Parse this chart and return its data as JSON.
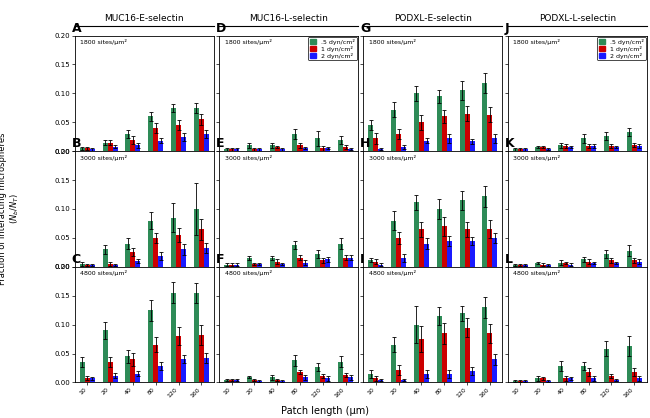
{
  "columns": [
    "MUC16-E-selectin",
    "MUC16-L-selectin",
    "PODXL-E-selectin",
    "PODXL-L-selectin"
  ],
  "col_letters": [
    [
      "A",
      "B",
      "C"
    ],
    [
      "D",
      "E",
      "F"
    ],
    [
      "G",
      "H",
      "I"
    ],
    [
      "J",
      "K",
      "L"
    ]
  ],
  "row_labels": [
    "1800 sites/μm²",
    "3000 sites/μm²",
    "4800 sites/μm²"
  ],
  "x_ticks": [
    10,
    20,
    40,
    80,
    120,
    160
  ],
  "xlabel": "Patch length (μm)",
  "ylim": [
    0,
    0.2
  ],
  "yticks": [
    0.0,
    0.05,
    0.1,
    0.15,
    0.2
  ],
  "colors": [
    "#2e8b57",
    "#cc0000",
    "#1a1aff"
  ],
  "legend_labels": [
    ".5 dyn/cm²",
    "1 dyn/cm²",
    "2 dyn/cm²"
  ],
  "data": {
    "MUC16-E-selectin": {
      "1800": {
        "green": [
          0.005,
          0.015,
          0.03,
          0.06,
          0.075,
          0.075
        ],
        "red": [
          0.005,
          0.015,
          0.02,
          0.04,
          0.045,
          0.055
        ],
        "blue": [
          0.003,
          0.008,
          0.01,
          0.018,
          0.025,
          0.03
        ],
        "green_err": [
          0.003,
          0.005,
          0.007,
          0.007,
          0.007,
          0.009
        ],
        "red_err": [
          0.003,
          0.005,
          0.007,
          0.009,
          0.009,
          0.009
        ],
        "blue_err": [
          0.002,
          0.003,
          0.004,
          0.004,
          0.007,
          0.007
        ]
      },
      "3000": {
        "green": [
          0.005,
          0.03,
          0.04,
          0.08,
          0.085,
          0.1
        ],
        "red": [
          0.003,
          0.005,
          0.025,
          0.05,
          0.055,
          0.065
        ],
        "blue": [
          0.003,
          0.003,
          0.01,
          0.018,
          0.03,
          0.033
        ],
        "green_err": [
          0.004,
          0.007,
          0.009,
          0.015,
          0.025,
          0.045
        ],
        "red_err": [
          0.002,
          0.004,
          0.007,
          0.009,
          0.012,
          0.018
        ],
        "blue_err": [
          0.002,
          0.002,
          0.004,
          0.007,
          0.009,
          0.009
        ]
      },
      "4800": {
        "green": [
          0.035,
          0.09,
          0.045,
          0.125,
          0.155,
          0.155
        ],
        "red": [
          0.008,
          0.035,
          0.04,
          0.065,
          0.08,
          0.082
        ],
        "blue": [
          0.007,
          0.012,
          0.015,
          0.028,
          0.04,
          0.042
        ],
        "green_err": [
          0.009,
          0.014,
          0.011,
          0.018,
          0.018,
          0.017
        ],
        "red_err": [
          0.004,
          0.009,
          0.011,
          0.013,
          0.016,
          0.018
        ],
        "blue_err": [
          0.002,
          0.004,
          0.004,
          0.007,
          0.007,
          0.009
        ]
      }
    },
    "MUC16-L-selectin": {
      "1800": {
        "green": [
          0.003,
          0.01,
          0.01,
          0.03,
          0.022,
          0.02
        ],
        "red": [
          0.003,
          0.003,
          0.007,
          0.01,
          0.005,
          0.007
        ],
        "blue": [
          0.003,
          0.003,
          0.003,
          0.005,
          0.005,
          0.004
        ],
        "green_err": [
          0.002,
          0.004,
          0.004,
          0.009,
          0.013,
          0.007
        ],
        "red_err": [
          0.002,
          0.002,
          0.002,
          0.004,
          0.004,
          0.004
        ],
        "blue_err": [
          0.002,
          0.002,
          0.002,
          0.002,
          0.002,
          0.002
        ]
      },
      "3000": {
        "green": [
          0.004,
          0.015,
          0.015,
          0.038,
          0.022,
          0.04
        ],
        "red": [
          0.004,
          0.005,
          0.009,
          0.016,
          0.011,
          0.016
        ],
        "blue": [
          0.004,
          0.005,
          0.005,
          0.007,
          0.013,
          0.016
        ],
        "green_err": [
          0.002,
          0.004,
          0.004,
          0.007,
          0.007,
          0.009
        ],
        "red_err": [
          0.002,
          0.002,
          0.004,
          0.004,
          0.004,
          0.004
        ],
        "blue_err": [
          0.002,
          0.002,
          0.002,
          0.004,
          0.004,
          0.004
        ]
      },
      "4800": {
        "green": [
          0.004,
          0.009,
          0.009,
          0.038,
          0.026,
          0.036
        ],
        "red": [
          0.004,
          0.004,
          0.004,
          0.018,
          0.011,
          0.013
        ],
        "blue": [
          0.004,
          0.002,
          0.002,
          0.009,
          0.007,
          0.009
        ],
        "green_err": [
          0.002,
          0.002,
          0.004,
          0.009,
          0.007,
          0.009
        ],
        "red_err": [
          0.002,
          0.002,
          0.002,
          0.004,
          0.004,
          0.004
        ],
        "blue_err": [
          0.002,
          0.002,
          0.002,
          0.004,
          0.004,
          0.004
        ]
      }
    },
    "PODXL-E-selectin": {
      "1800": {
        "green": [
          0.045,
          0.072,
          0.1,
          0.095,
          0.105,
          0.118
        ],
        "red": [
          0.022,
          0.03,
          0.05,
          0.06,
          0.065,
          0.063
        ],
        "blue": [
          0.004,
          0.007,
          0.018,
          0.022,
          0.017,
          0.022
        ],
        "green_err": [
          0.009,
          0.013,
          0.013,
          0.011,
          0.016,
          0.018
        ],
        "red_err": [
          0.009,
          0.009,
          0.013,
          0.011,
          0.013,
          0.013
        ],
        "blue_err": [
          0.002,
          0.004,
          0.004,
          0.007,
          0.004,
          0.007
        ]
      },
      "3000": {
        "green": [
          0.012,
          0.08,
          0.112,
          0.1,
          0.115,
          0.122
        ],
        "red": [
          0.009,
          0.05,
          0.065,
          0.07,
          0.065,
          0.065
        ],
        "blue": [
          0.004,
          0.015,
          0.04,
          0.045,
          0.045,
          0.05
        ],
        "green_err": [
          0.004,
          0.016,
          0.013,
          0.018,
          0.016,
          0.018
        ],
        "red_err": [
          0.004,
          0.011,
          0.013,
          0.016,
          0.013,
          0.016
        ],
        "blue_err": [
          0.002,
          0.007,
          0.009,
          0.009,
          0.007,
          0.009
        ]
      },
      "4800": {
        "green": [
          0.015,
          0.065,
          0.1,
          0.115,
          0.12,
          0.13
        ],
        "red": [
          0.007,
          0.022,
          0.075,
          0.085,
          0.095,
          0.085
        ],
        "blue": [
          0.004,
          0.004,
          0.015,
          0.015,
          0.02,
          0.04
        ],
        "green_err": [
          0.007,
          0.013,
          0.032,
          0.016,
          0.013,
          0.018
        ],
        "red_err": [
          0.004,
          0.009,
          0.022,
          0.018,
          0.016,
          0.016
        ],
        "blue_err": [
          0.002,
          0.002,
          0.007,
          0.007,
          0.007,
          0.009
        ]
      }
    },
    "PODXL-L-selectin": {
      "1800": {
        "green": [
          0.003,
          0.007,
          0.01,
          0.022,
          0.026,
          0.033
        ],
        "red": [
          0.003,
          0.007,
          0.009,
          0.009,
          0.009,
          0.011
        ],
        "blue": [
          0.003,
          0.004,
          0.007,
          0.009,
          0.007,
          0.009
        ],
        "green_err": [
          0.002,
          0.002,
          0.004,
          0.007,
          0.007,
          0.007
        ],
        "red_err": [
          0.002,
          0.002,
          0.004,
          0.004,
          0.004,
          0.004
        ],
        "blue_err": [
          0.002,
          0.002,
          0.002,
          0.004,
          0.002,
          0.004
        ]
      },
      "3000": {
        "green": [
          0.003,
          0.007,
          0.007,
          0.013,
          0.022,
          0.028
        ],
        "red": [
          0.003,
          0.004,
          0.007,
          0.009,
          0.011,
          0.011
        ],
        "blue": [
          0.003,
          0.003,
          0.004,
          0.007,
          0.007,
          0.009
        ],
        "green_err": [
          0.002,
          0.002,
          0.004,
          0.004,
          0.007,
          0.009
        ],
        "red_err": [
          0.002,
          0.002,
          0.002,
          0.004,
          0.004,
          0.004
        ],
        "blue_err": [
          0.002,
          0.002,
          0.002,
          0.002,
          0.002,
          0.004
        ]
      },
      "4800": {
        "green": [
          0.003,
          0.007,
          0.028,
          0.028,
          0.058,
          0.063
        ],
        "red": [
          0.003,
          0.007,
          0.007,
          0.018,
          0.011,
          0.018
        ],
        "blue": [
          0.003,
          0.003,
          0.007,
          0.007,
          0.004,
          0.007
        ],
        "green_err": [
          0.002,
          0.004,
          0.009,
          0.007,
          0.013,
          0.018
        ],
        "red_err": [
          0.002,
          0.002,
          0.004,
          0.007,
          0.004,
          0.007
        ],
        "blue_err": [
          0.002,
          0.002,
          0.002,
          0.004,
          0.002,
          0.004
        ]
      }
    }
  }
}
